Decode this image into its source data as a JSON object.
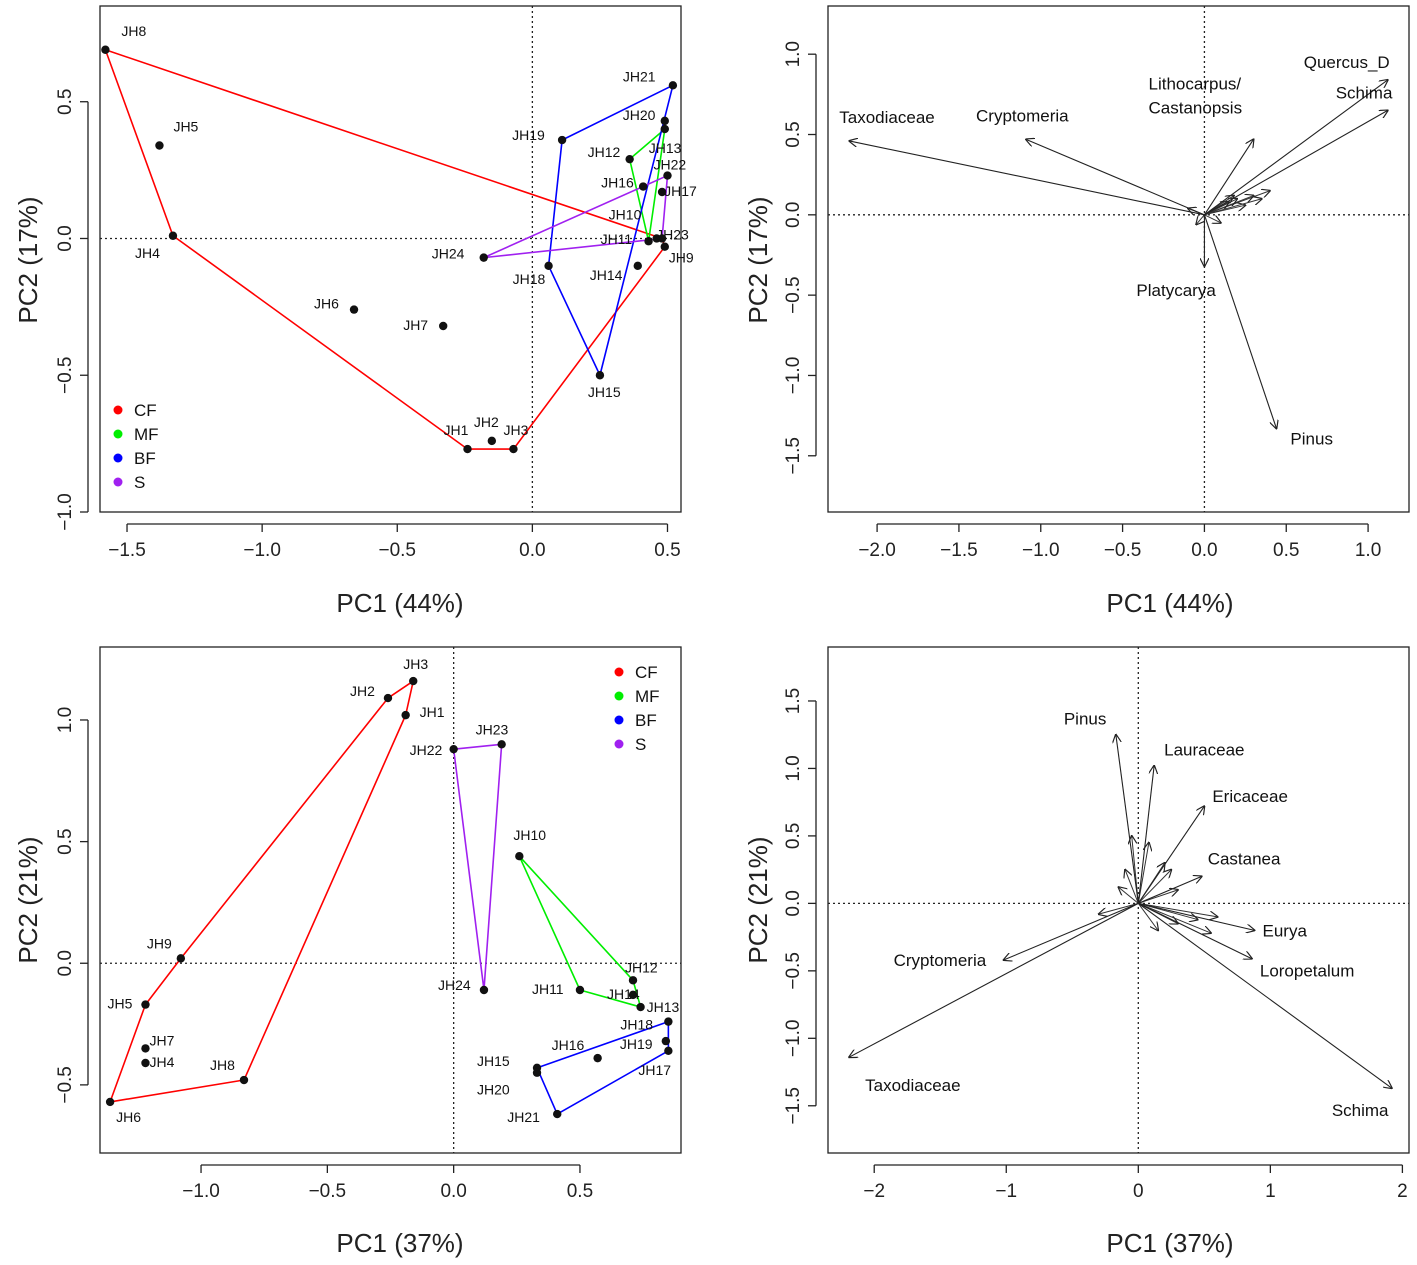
{
  "chart_data": [
    {
      "id": "tl",
      "type": "scatter",
      "xlabel": "PC1 (44%)",
      "ylabel": "PC2 (17%)",
      "xlim": [
        -1.6,
        0.55
      ],
      "ylim": [
        -1.0,
        0.85
      ],
      "xticks": [
        -1.5,
        -1.0,
        -0.5,
        0.0,
        0.5
      ],
      "xtick_labels": [
        "−1.5",
        "−1.0",
        "−0.5",
        "0.0",
        "0.5"
      ],
      "yticks": [
        -1.0,
        -0.5,
        0.0,
        0.5
      ],
      "ytick_labels": [
        "−1.0",
        "−0.5",
        "0.0",
        "0.5"
      ],
      "legend": {
        "position": "bottom-left",
        "entries": [
          {
            "label": "CF",
            "color": "#ff0000"
          },
          {
            "label": "MF",
            "color": "#00ee00"
          },
          {
            "label": "BF",
            "color": "#0000ff"
          },
          {
            "label": "S",
            "color": "#a020f0"
          }
        ]
      },
      "hulls": [
        {
          "group": "CF",
          "color": "#ff0000",
          "points": [
            "JH8",
            "JH4",
            "JH1",
            "JH3",
            "JH9",
            "JH23"
          ]
        },
        {
          "group": "MF",
          "color": "#00ee00",
          "points": [
            "JH12",
            "JH13",
            "JH11"
          ]
        },
        {
          "group": "BF",
          "color": "#0000ff",
          "points": [
            "JH21",
            "JH19",
            "JH18",
            "JH15"
          ]
        },
        {
          "group": "S",
          "color": "#a020f0",
          "points": [
            "JH24",
            "JH22",
            "JH23"
          ]
        }
      ],
      "points": [
        {
          "label": "JH8",
          "x": -1.58,
          "y": 0.69
        },
        {
          "label": "JH5",
          "x": -1.38,
          "y": 0.34
        },
        {
          "label": "JH4",
          "x": -1.33,
          "y": 0.01
        },
        {
          "label": "JH6",
          "x": -0.66,
          "y": -0.26
        },
        {
          "label": "JH7",
          "x": -0.33,
          "y": -0.32
        },
        {
          "label": "JH1",
          "x": -0.24,
          "y": -0.77
        },
        {
          "label": "JH2",
          "x": -0.15,
          "y": -0.74
        },
        {
          "label": "JH3",
          "x": -0.07,
          "y": -0.77
        },
        {
          "label": "JH24",
          "x": -0.18,
          "y": -0.07
        },
        {
          "label": "JH18",
          "x": 0.06,
          "y": -0.1
        },
        {
          "label": "JH19",
          "x": 0.11,
          "y": 0.36
        },
        {
          "label": "JH15",
          "x": 0.25,
          "y": -0.5
        },
        {
          "label": "JH12",
          "x": 0.36,
          "y": 0.29
        },
        {
          "label": "JH16",
          "x": 0.41,
          "y": 0.19
        },
        {
          "label": "JH14",
          "x": 0.39,
          "y": -0.1
        },
        {
          "label": "JH11",
          "x": 0.43,
          "y": -0.01
        },
        {
          "label": "JH10",
          "x": 0.46,
          "y": 0.0
        },
        {
          "label": "JH9",
          "x": 0.49,
          "y": -0.03
        },
        {
          "label": "JH23",
          "x": 0.48,
          "y": 0.0
        },
        {
          "label": "JH17",
          "x": 0.48,
          "y": 0.17
        },
        {
          "label": "JH22",
          "x": 0.5,
          "y": 0.23
        },
        {
          "label": "JH13",
          "x": 0.49,
          "y": 0.4
        },
        {
          "label": "JH20",
          "x": 0.49,
          "y": 0.43
        },
        {
          "label": "JH21",
          "x": 0.52,
          "y": 0.56
        }
      ]
    },
    {
      "id": "tr",
      "type": "scatter",
      "xlabel": "PC1 (44%)",
      "ylabel": "PC2 (17%)",
      "xlim": [
        -2.3,
        1.25
      ],
      "ylim": [
        -1.85,
        1.3
      ],
      "xticks": [
        -2.0,
        -1.5,
        -1.0,
        -0.5,
        0.0,
        0.5,
        1.0
      ],
      "xtick_labels": [
        "−2.0",
        "−1.5",
        "−1.0",
        "−0.5",
        "0.0",
        "0.5",
        "1.0"
      ],
      "yticks": [
        -1.5,
        -1.0,
        -0.5,
        0.0,
        0.5,
        1.0
      ],
      "ytick_labels": [
        "−1.5",
        "−1.0",
        "−0.5",
        "0.0",
        "0.5",
        "1.0"
      ],
      "vectors": [
        {
          "label": "Taxodiaceae",
          "x": -2.17,
          "y": 0.46
        },
        {
          "label": "Cryptomeria",
          "x": -1.09,
          "y": 0.47
        },
        {
          "label": "Lithocarpus/",
          "label2": "Castanopsis",
          "x": 0.3,
          "y": 0.47
        },
        {
          "label": "Quercus_D",
          "x": 1.12,
          "y": 0.84
        },
        {
          "label": "Schima",
          "x": 1.12,
          "y": 0.65
        },
        {
          "label": "Platycarya",
          "x": 0.0,
          "y": -0.32
        },
        {
          "label": "Pinus",
          "x": 0.44,
          "y": -1.33
        }
      ],
      "minor_vectors": [
        {
          "x": 0.4,
          "y": 0.15
        },
        {
          "x": 0.3,
          "y": 0.12
        },
        {
          "x": 0.2,
          "y": 0.1
        },
        {
          "x": 0.15,
          "y": 0.08
        },
        {
          "x": 0.25,
          "y": 0.06
        },
        {
          "x": -0.1,
          "y": 0.04
        },
        {
          "x": 0.1,
          "y": -0.05
        },
        {
          "x": -0.05,
          "y": -0.06
        },
        {
          "x": 0.35,
          "y": 0.1
        },
        {
          "x": 0.18,
          "y": 0.12
        }
      ]
    },
    {
      "id": "bl",
      "type": "scatter",
      "xlabel": "PC1 (37%)",
      "ylabel": "PC2 (21%)",
      "xlim": [
        -1.4,
        0.9
      ],
      "ylim": [
        -0.78,
        1.3
      ],
      "xticks": [
        -1.0,
        -0.5,
        0.0,
        0.5
      ],
      "xtick_labels": [
        "−1.0",
        "−0.5",
        "0.0",
        "0.5"
      ],
      "yticks": [
        -0.5,
        0.0,
        0.5,
        1.0
      ],
      "ytick_labels": [
        "−0.5",
        "0.0",
        "0.5",
        "1.0"
      ],
      "legend": {
        "position": "top-right",
        "entries": [
          {
            "label": "CF",
            "color": "#ff0000"
          },
          {
            "label": "MF",
            "color": "#00ee00"
          },
          {
            "label": "BF",
            "color": "#0000ff"
          },
          {
            "label": "S",
            "color": "#a020f0"
          }
        ]
      },
      "hulls": [
        {
          "group": "CF",
          "color": "#ff0000",
          "points": [
            "JH3",
            "JH2",
            "JH9",
            "JH5",
            "JH6",
            "JH8",
            "JH1"
          ]
        },
        {
          "group": "MF",
          "color": "#00ee00",
          "points": [
            "JH10",
            "JH11",
            "JH13",
            "JH12"
          ]
        },
        {
          "group": "BF",
          "color": "#0000ff",
          "points": [
            "JH15",
            "JH21",
            "JH17",
            "JH18"
          ]
        },
        {
          "group": "S",
          "color": "#a020f0",
          "points": [
            "JH22",
            "JH23",
            "JH24"
          ]
        }
      ],
      "points": [
        {
          "label": "JH3",
          "x": -0.16,
          "y": 1.16
        },
        {
          "label": "JH2",
          "x": -0.26,
          "y": 1.09
        },
        {
          "label": "JH1",
          "x": -0.19,
          "y": 1.02
        },
        {
          "label": "JH22",
          "x": 0.0,
          "y": 0.88
        },
        {
          "label": "JH23",
          "x": 0.19,
          "y": 0.9
        },
        {
          "label": "JH10",
          "x": 0.26,
          "y": 0.44
        },
        {
          "label": "JH9",
          "x": -1.08,
          "y": 0.02
        },
        {
          "label": "JH5",
          "x": -1.22,
          "y": -0.17
        },
        {
          "label": "JH7",
          "x": -1.22,
          "y": -0.35
        },
        {
          "label": "JH4",
          "x": -1.22,
          "y": -0.41
        },
        {
          "label": "JH6",
          "x": -1.36,
          "y": -0.57
        },
        {
          "label": "JH8",
          "x": -0.83,
          "y": -0.48
        },
        {
          "label": "JH24",
          "x": 0.12,
          "y": -0.11
        },
        {
          "label": "JH11",
          "x": 0.5,
          "y": -0.11
        },
        {
          "label": "JH14",
          "x": 0.71,
          "y": -0.13
        },
        {
          "label": "JH12",
          "x": 0.71,
          "y": -0.07
        },
        {
          "label": "JH13",
          "x": 0.74,
          "y": -0.18
        },
        {
          "label": "JH18",
          "x": 0.85,
          "y": -0.24
        },
        {
          "label": "JH19",
          "x": 0.84,
          "y": -0.32
        },
        {
          "label": "JH17",
          "x": 0.85,
          "y": -0.36
        },
        {
          "label": "JH16",
          "x": 0.57,
          "y": -0.39
        },
        {
          "label": "JH15",
          "x": 0.33,
          "y": -0.43
        },
        {
          "label": "JH20",
          "x": 0.33,
          "y": -0.45
        },
        {
          "label": "JH21",
          "x": 0.41,
          "y": -0.62
        }
      ]
    },
    {
      "id": "br",
      "type": "scatter",
      "xlabel": "PC1 (37%)",
      "ylabel": "PC2 (21%)",
      "xlim": [
        -2.35,
        2.05
      ],
      "ylim": [
        -1.85,
        1.9
      ],
      "xticks": [
        -2,
        -1,
        0,
        1,
        2
      ],
      "xtick_labels": [
        "−2",
        "−1",
        "0",
        "1",
        "2"
      ],
      "yticks": [
        -1.5,
        -1.0,
        -0.5,
        0.0,
        0.5,
        1.0,
        1.5
      ],
      "ytick_labels": [
        "−1.5",
        "−1.0",
        "−0.5",
        "0.0",
        "0.5",
        "1.0",
        "1.5"
      ],
      "vectors": [
        {
          "label": "Pinus",
          "x": -0.17,
          "y": 1.25
        },
        {
          "label": "Lauraceae",
          "x": 0.12,
          "y": 1.02
        },
        {
          "label": "Ericaceae",
          "x": 0.5,
          "y": 0.72
        },
        {
          "label": "Castanea",
          "x": 0.48,
          "y": 0.2
        },
        {
          "label": "Eurya",
          "x": 0.88,
          "y": -0.2
        },
        {
          "label": "Loropetalum",
          "x": 0.86,
          "y": -0.41
        },
        {
          "label": "Cryptomeria",
          "x": -1.02,
          "y": -0.42
        },
        {
          "label": "Taxodiaceae",
          "x": -2.19,
          "y": -1.14
        },
        {
          "label": "Schima",
          "x": 1.92,
          "y": -1.37
        }
      ],
      "minor_vectors": [
        {
          "x": -0.05,
          "y": 0.5
        },
        {
          "x": 0.08,
          "y": 0.45
        },
        {
          "x": -0.1,
          "y": 0.25
        },
        {
          "x": 0.25,
          "y": 0.25
        },
        {
          "x": 0.3,
          "y": 0.1
        },
        {
          "x": 0.6,
          "y": -0.1
        },
        {
          "x": 0.45,
          "y": -0.12
        },
        {
          "x": 0.3,
          "y": -0.15
        },
        {
          "x": -0.3,
          "y": -0.08
        },
        {
          "x": 0.15,
          "y": -0.2
        },
        {
          "x": -0.15,
          "y": 0.12
        },
        {
          "x": 0.2,
          "y": 0.3
        },
        {
          "x": 0.55,
          "y": -0.22
        }
      ]
    }
  ]
}
